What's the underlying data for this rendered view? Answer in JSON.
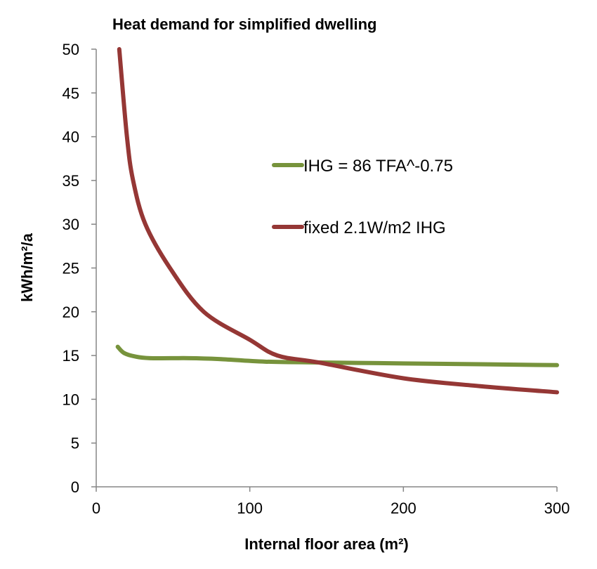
{
  "chart_data": {
    "type": "line",
    "title": "Heat demand for simplified dwelling",
    "xlabel": "Internal floor area (m²)",
    "ylabel": "kWh/m²/a",
    "xlim": [
      0,
      300
    ],
    "ylim": [
      0,
      50
    ],
    "xticks": [
      0,
      100,
      200,
      300
    ],
    "yticks": [
      0,
      5,
      10,
      15,
      20,
      25,
      30,
      35,
      40,
      45,
      50
    ],
    "grid": false,
    "legend_position": "center-right",
    "series": [
      {
        "name": "IHG = 86 TFA^-0.75",
        "color": "#77933C",
        "x": [
          14,
          18,
          25,
          35,
          60,
          80,
          110,
          150,
          200,
          250,
          300
        ],
        "y": [
          16,
          15.3,
          14.9,
          14.7,
          14.7,
          14.6,
          14.3,
          14.2,
          14.1,
          14.0,
          13.9
        ]
      },
      {
        "name": "fixed 2.1W/m2 IHG",
        "color": "#953735",
        "x": [
          15,
          20,
          24,
          32,
          48,
          70,
          100,
          118,
          145,
          200,
          250,
          300
        ],
        "y": [
          50,
          40,
          35,
          30,
          25,
          20,
          16.8,
          15,
          14.2,
          12.4,
          11.5,
          10.8
        ]
      }
    ]
  }
}
